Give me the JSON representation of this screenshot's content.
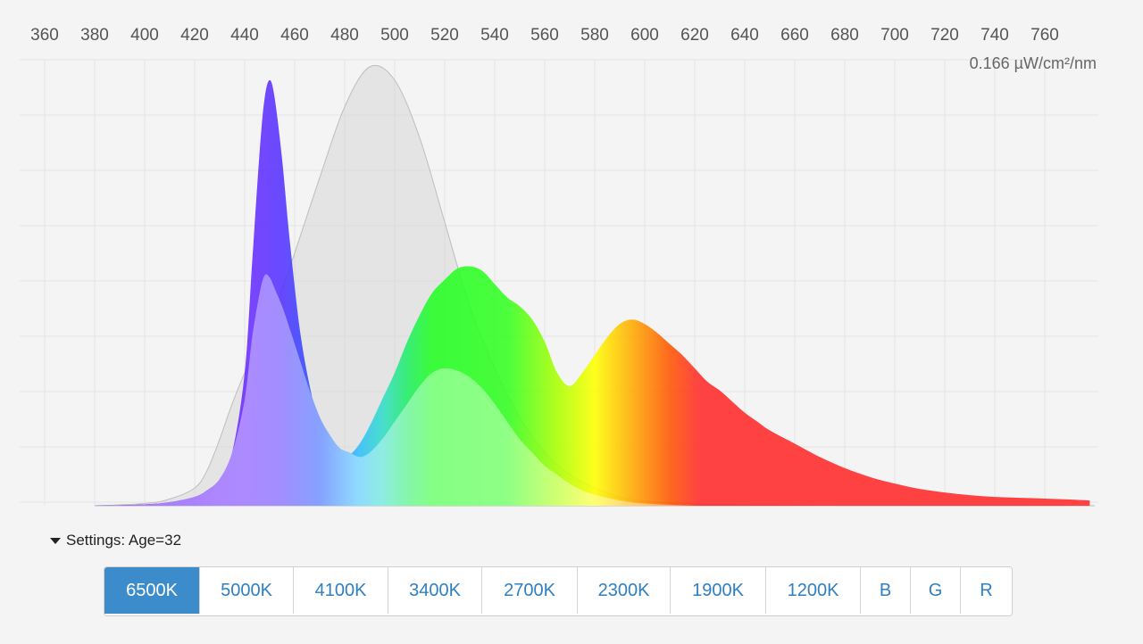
{
  "chart_data": {
    "type": "area",
    "unit_label": "0.166 µW/cm²/nm",
    "x_ticks": [
      360,
      380,
      400,
      420,
      440,
      460,
      480,
      500,
      520,
      540,
      560,
      580,
      600,
      620,
      640,
      660,
      680,
      700,
      720,
      740,
      760
    ],
    "xlim": [
      360,
      780
    ],
    "ylim": [
      0,
      1
    ],
    "series": [
      {
        "x": [
          380,
          400,
          410,
          420,
          425,
          430,
          435,
          440,
          445,
          450,
          455,
          460,
          470,
          480,
          490,
          500,
          510,
          520,
          530,
          540,
          550,
          560,
          570,
          580,
          590,
          600,
          620,
          640,
          660,
          680,
          700,
          720,
          740,
          760,
          780
        ],
        "values": [
          0,
          0.005,
          0.015,
          0.04,
          0.08,
          0.15,
          0.23,
          0.3,
          0.36,
          0.42,
          0.49,
          0.57,
          0.74,
          0.9,
          0.99,
          0.96,
          0.83,
          0.64,
          0.45,
          0.31,
          0.2,
          0.12,
          0.07,
          0.04,
          0.02,
          0.01,
          0.005,
          0.002,
          0.001,
          0,
          0,
          0,
          0,
          0,
          0
        ]
      },
      {
        "x": [
          380,
          400,
          410,
          420,
          425,
          430,
          435,
          440,
          443,
          446,
          448,
          450,
          452,
          455,
          458,
          462,
          466,
          470,
          474,
          478,
          482,
          486,
          490,
          495,
          500,
          505,
          510,
          515,
          520,
          525,
          530,
          535,
          540,
          545,
          550,
          555,
          560,
          565,
          570,
          575,
          580,
          585,
          590,
          595,
          600,
          605,
          610,
          615,
          620,
          625,
          630,
          635,
          640,
          645,
          650,
          660,
          670,
          680,
          690,
          700,
          710,
          720,
          730,
          740,
          750,
          760,
          770,
          778
        ],
        "values": [
          0,
          0.003,
          0.008,
          0.02,
          0.035,
          0.06,
          0.12,
          0.3,
          0.55,
          0.8,
          0.92,
          0.96,
          0.92,
          0.78,
          0.6,
          0.4,
          0.27,
          0.18,
          0.13,
          0.11,
          0.115,
          0.14,
          0.18,
          0.24,
          0.3,
          0.37,
          0.43,
          0.48,
          0.51,
          0.535,
          0.54,
          0.53,
          0.5,
          0.47,
          0.45,
          0.42,
          0.37,
          0.3,
          0.27,
          0.3,
          0.34,
          0.38,
          0.41,
          0.42,
          0.41,
          0.39,
          0.365,
          0.34,
          0.31,
          0.28,
          0.26,
          0.235,
          0.21,
          0.19,
          0.17,
          0.14,
          0.11,
          0.085,
          0.065,
          0.05,
          0.038,
          0.03,
          0.024,
          0.02,
          0.018,
          0.016,
          0.014,
          0.012
        ]
      },
      {
        "x": [
          380,
          400,
          410,
          420,
          425,
          430,
          435,
          440,
          443,
          446,
          448,
          450,
          452,
          455,
          458,
          462,
          466,
          470,
          474,
          478,
          482,
          486,
          490,
          495,
          500,
          505,
          510,
          515,
          520,
          525,
          530,
          535,
          540,
          545,
          550,
          555,
          560,
          565,
          570,
          575,
          580,
          590,
          600,
          620
        ],
        "values": [
          0,
          0.003,
          0.008,
          0.02,
          0.035,
          0.06,
          0.12,
          0.24,
          0.38,
          0.48,
          0.52,
          0.515,
          0.49,
          0.45,
          0.4,
          0.33,
          0.26,
          0.2,
          0.16,
          0.13,
          0.12,
          0.11,
          0.12,
          0.15,
          0.19,
          0.23,
          0.27,
          0.3,
          0.31,
          0.305,
          0.29,
          0.265,
          0.23,
          0.19,
          0.15,
          0.12,
          0.09,
          0.07,
          0.05,
          0.035,
          0.025,
          0.012,
          0.005,
          0
        ]
      }
    ]
  },
  "settings": {
    "label": "Settings: Age=32"
  },
  "buttons": [
    {
      "label": "6500K",
      "active": true
    },
    {
      "label": "5000K",
      "active": false
    },
    {
      "label": "4100K",
      "active": false
    },
    {
      "label": "3400K",
      "active": false
    },
    {
      "label": "2700K",
      "active": false
    },
    {
      "label": "2300K",
      "active": false
    },
    {
      "label": "1900K",
      "active": false
    },
    {
      "label": "1200K",
      "active": false
    },
    {
      "label": "B",
      "active": false
    },
    {
      "label": "G",
      "active": false
    },
    {
      "label": "R",
      "active": false
    }
  ],
  "colors": {
    "background": "#f5f4f5",
    "grid": "#e4e4e4",
    "active_button": "#3c8ccc",
    "button_text": "#2f7fc1",
    "sensitivity_fill": "#d9d9d9",
    "sensitivity_stroke": "#bdbdbd"
  }
}
